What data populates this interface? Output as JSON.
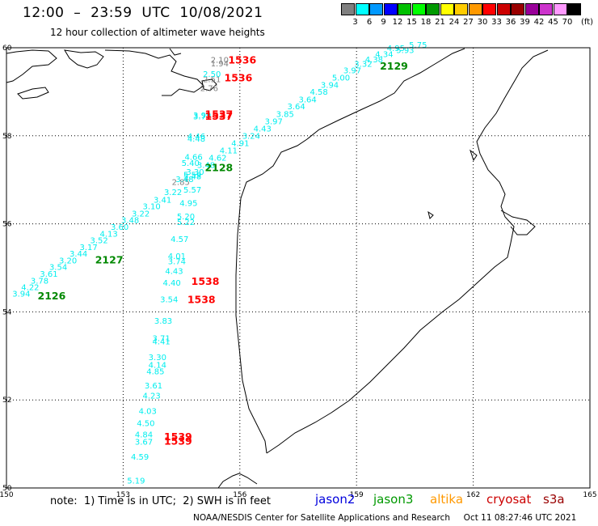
{
  "header": {
    "title": "12:00  –  23:59  UTC  10/08/2021",
    "subtitle": "12 hour collection of altimeter wave heights"
  },
  "scale": {
    "unit": "(ft)",
    "colors": [
      "#808080",
      "#00ffff",
      "#0099ff",
      "#0000ff",
      "#00c000",
      "#00ff00",
      "#009900",
      "#ffff00",
      "#ffcc00",
      "#ff9900",
      "#ff0000",
      "#cc0000",
      "#990000",
      "#990099",
      "#cc33cc",
      "#ff99ff",
      "#000000"
    ],
    "labels": [
      "3",
      "6",
      "9",
      "12",
      "15",
      "18",
      "21",
      "24",
      "27",
      "30",
      "33",
      "36",
      "39",
      "42",
      "45",
      "70"
    ]
  },
  "map": {
    "lon_min": 150,
    "lon_max": 165,
    "lat_min": 50,
    "lat_max": 60,
    "lon_ticks": [
      "150",
      "153",
      "156",
      "159",
      "162",
      "165"
    ],
    "lat_ticks": [
      "50",
      "52",
      "54",
      "56",
      "58",
      "60"
    ]
  },
  "labels": [
    {
      "t": "2.10",
      "c": "#808080",
      "lon": 155.25,
      "lat": 59.66
    },
    {
      "t": "1.94",
      "c": "#808080",
      "lon": 155.25,
      "lat": 59.58
    },
    {
      "t": "2.51",
      "c": "#808080",
      "lon": 155.05,
      "lat": 59.22
    },
    {
      "t": "2.76",
      "c": "#808080",
      "lon": 154.98,
      "lat": 59.02
    },
    {
      "t": "2.85",
      "c": "#808080",
      "lon": 154.25,
      "lat": 56.88
    },
    {
      "t": "2.50",
      "c": "#00eeee",
      "lon": 155.05,
      "lat": 59.34
    },
    {
      "t": "3.99",
      "c": "#00eeee",
      "lon": 154.8,
      "lat": 58.4
    },
    {
      "t": "3.77",
      "c": "#00eeee",
      "lon": 154.8,
      "lat": 58.37
    },
    {
      "t": "4.46",
      "c": "#00eeee",
      "lon": 154.65,
      "lat": 57.92
    },
    {
      "t": "4.48",
      "c": "#00eeee",
      "lon": 154.65,
      "lat": 57.87
    },
    {
      "t": "4.66",
      "c": "#00eeee",
      "lon": 154.58,
      "lat": 57.45
    },
    {
      "t": "5.40",
      "c": "#00eeee",
      "lon": 154.5,
      "lat": 57.32
    },
    {
      "t": "5.59",
      "c": "#00eeee",
      "lon": 154.55,
      "lat": 57.05
    },
    {
      "t": "5.48",
      "c": "#00eeee",
      "lon": 154.55,
      "lat": 57.01
    },
    {
      "t": "5.57",
      "c": "#00eeee",
      "lon": 154.55,
      "lat": 56.71
    },
    {
      "t": "4.95",
      "c": "#00eeee",
      "lon": 154.45,
      "lat": 56.41
    },
    {
      "t": "5.20",
      "c": "#00eeee",
      "lon": 154.38,
      "lat": 56.1
    },
    {
      "t": "5.22",
      "c": "#00eeee",
      "lon": 154.38,
      "lat": 55.97
    },
    {
      "t": "4.57",
      "c": "#00eeee",
      "lon": 154.22,
      "lat": 55.59
    },
    {
      "t": "4.01",
      "c": "#00eeee",
      "lon": 154.15,
      "lat": 55.2
    },
    {
      "t": "3.74",
      "c": "#00eeee",
      "lon": 154.15,
      "lat": 55.08
    },
    {
      "t": "4.43",
      "c": "#00eeee",
      "lon": 154.08,
      "lat": 54.86
    },
    {
      "t": "4.40",
      "c": "#00eeee",
      "lon": 154.02,
      "lat": 54.6
    },
    {
      "t": "3.54",
      "c": "#00eeee",
      "lon": 153.95,
      "lat": 54.22
    },
    {
      "t": "3.83",
      "c": "#00eeee",
      "lon": 153.8,
      "lat": 53.73
    },
    {
      "t": "3.71",
      "c": "#00eeee",
      "lon": 153.75,
      "lat": 53.34
    },
    {
      "t": "4.41",
      "c": "#00eeee",
      "lon": 153.75,
      "lat": 53.26
    },
    {
      "t": "3.30",
      "c": "#00eeee",
      "lon": 153.65,
      "lat": 52.9
    },
    {
      "t": "4.14",
      "c": "#00eeee",
      "lon": 153.65,
      "lat": 52.73
    },
    {
      "t": "4.85",
      "c": "#00eeee",
      "lon": 153.6,
      "lat": 52.58
    },
    {
      "t": "3.61",
      "c": "#00eeee",
      "lon": 153.55,
      "lat": 52.26
    },
    {
      "t": "4.23",
      "c": "#00eeee",
      "lon": 153.5,
      "lat": 52.03
    },
    {
      "t": "4.03",
      "c": "#00eeee",
      "lon": 153.4,
      "lat": 51.68
    },
    {
      "t": "4.50",
      "c": "#00eeee",
      "lon": 153.35,
      "lat": 51.41
    },
    {
      "t": "4.84",
      "c": "#00eeee",
      "lon": 153.3,
      "lat": 51.15
    },
    {
      "t": "3.67",
      "c": "#00eeee",
      "lon": 153.3,
      "lat": 50.98
    },
    {
      "t": "4.59",
      "c": "#00eeee",
      "lon": 153.2,
      "lat": 50.64
    },
    {
      "t": "5.19",
      "c": "#00eeee",
      "lon": 153.1,
      "lat": 50.1
    },
    {
      "t": "3.94",
      "c": "#00eeee",
      "lon": 150.15,
      "lat": 54.35
    },
    {
      "t": "4.22",
      "c": "#00eeee",
      "lon": 150.38,
      "lat": 54.49
    },
    {
      "t": "3.78",
      "c": "#00eeee",
      "lon": 150.62,
      "lat": 54.64
    },
    {
      "t": "3.61",
      "c": "#00eeee",
      "lon": 150.86,
      "lat": 54.8
    },
    {
      "t": "3.54",
      "c": "#00eeee",
      "lon": 151.1,
      "lat": 54.95
    },
    {
      "t": "3.20",
      "c": "#00eeee",
      "lon": 151.35,
      "lat": 55.1
    },
    {
      "t": "3.44",
      "c": "#00eeee",
      "lon": 151.62,
      "lat": 55.26
    },
    {
      "t": "3.17",
      "c": "#00eeee",
      "lon": 151.88,
      "lat": 55.4
    },
    {
      "t": "3.52",
      "c": "#00eeee",
      "lon": 152.15,
      "lat": 55.56
    },
    {
      "t": "4.13",
      "c": "#00eeee",
      "lon": 152.4,
      "lat": 55.71
    },
    {
      "t": "3.60",
      "c": "#00eeee",
      "lon": 152.68,
      "lat": 55.86
    },
    {
      "t": "3.48",
      "c": "#00eeee",
      "lon": 152.95,
      "lat": 56.02
    },
    {
      "t": "3.22",
      "c": "#00eeee",
      "lon": 153.22,
      "lat": 56.17
    },
    {
      "t": "3.10",
      "c": "#00eeee",
      "lon": 153.5,
      "lat": 56.33
    },
    {
      "t": "3.41",
      "c": "#00eeee",
      "lon": 153.78,
      "lat": 56.48
    },
    {
      "t": "3.22",
      "c": "#00eeee",
      "lon": 154.05,
      "lat": 56.65
    },
    {
      "t": "3.48",
      "c": "#00eeee",
      "lon": 154.35,
      "lat": 56.95
    },
    {
      "t": "3.30",
      "c": "#00eeee",
      "lon": 154.62,
      "lat": 57.11
    },
    {
      "t": "3.48",
      "c": "#00eeee",
      "lon": 154.9,
      "lat": 57.27
    },
    {
      "t": "4.62",
      "c": "#00eeee",
      "lon": 155.2,
      "lat": 57.44
    },
    {
      "t": "4.11",
      "c": "#00eeee",
      "lon": 155.48,
      "lat": 57.6
    },
    {
      "t": "4.91",
      "c": "#00eeee",
      "lon": 155.78,
      "lat": 57.77
    },
    {
      "t": "3.24",
      "c": "#00eeee",
      "lon": 156.06,
      "lat": 57.93
    },
    {
      "t": "4.43",
      "c": "#00eeee",
      "lon": 156.35,
      "lat": 58.1
    },
    {
      "t": "3.97",
      "c": "#00eeee",
      "lon": 156.64,
      "lat": 58.26
    },
    {
      "t": "3.85",
      "c": "#00eeee",
      "lon": 156.93,
      "lat": 58.43
    },
    {
      "t": "3.64",
      "c": "#00eeee",
      "lon": 157.22,
      "lat": 58.6
    },
    {
      "t": "3.64",
      "c": "#00eeee",
      "lon": 157.51,
      "lat": 58.76
    },
    {
      "t": "4.58",
      "c": "#00eeee",
      "lon": 157.8,
      "lat": 58.93
    },
    {
      "t": "3.94",
      "c": "#00eeee",
      "lon": 158.08,
      "lat": 59.09
    },
    {
      "t": "5.00",
      "c": "#00eeee",
      "lon": 158.37,
      "lat": 59.26
    },
    {
      "t": "3.97",
      "c": "#00eeee",
      "lon": 158.66,
      "lat": 59.42
    },
    {
      "t": "3.32",
      "c": "#00eeee",
      "lon": 158.94,
      "lat": 59.57
    },
    {
      "t": "4.38",
      "c": "#00eeee",
      "lon": 159.22,
      "lat": 59.67
    },
    {
      "t": "4.34",
      "c": "#00eeee",
      "lon": 159.48,
      "lat": 59.79
    },
    {
      "t": "4.95",
      "c": "#00eeee",
      "lon": 159.78,
      "lat": 59.93
    },
    {
      "t": "5.75",
      "c": "#00eeee",
      "lon": 160.35,
      "lat": 60.0
    },
    {
      "t": "5.93",
      "c": "#00eeee",
      "lon": 160.02,
      "lat": 59.88
    },
    {
      "t": "1536",
      "c": "#ff0000",
      "lon": 155.7,
      "lat": 59.64,
      "b": true
    },
    {
      "t": "1536",
      "c": "#ff0000",
      "lon": 155.6,
      "lat": 59.24,
      "b": true
    },
    {
      "t": "1537",
      "c": "#ff0000",
      "lon": 155.1,
      "lat": 58.41,
      "b": true
    },
    {
      "t": "1537",
      "c": "#ff0000",
      "lon": 155.1,
      "lat": 58.36,
      "b": true
    },
    {
      "t": "1538",
      "c": "#ff0000",
      "lon": 154.75,
      "lat": 54.61,
      "b": true
    },
    {
      "t": "1538",
      "c": "#ff0000",
      "lon": 154.65,
      "lat": 54.2,
      "b": true
    },
    {
      "t": "1539",
      "c": "#ff0000",
      "lon": 154.05,
      "lat": 51.08,
      "b": true
    },
    {
      "t": "1539",
      "c": "#ff0000",
      "lon": 154.05,
      "lat": 50.98,
      "b": true
    },
    {
      "t": "2129",
      "c": "#008800",
      "lon": 159.6,
      "lat": 59.5,
      "b": true
    },
    {
      "t": "2128",
      "c": "#008800",
      "lon": 155.1,
      "lat": 57.2,
      "b": true
    },
    {
      "t": "2127",
      "c": "#008800",
      "lon": 152.28,
      "lat": 55.1,
      "b": true
    },
    {
      "t": "2126",
      "c": "#008800",
      "lon": 150.8,
      "lat": 54.28,
      "b": true
    }
  ],
  "footer": {
    "note": "note:  1) Time is in UTC;  2) SWH is in feet",
    "credit": "NOAA/NESDIS Center for Satellite Applications and Research     Oct 11 08:27:46 UTC 2021"
  },
  "satellites": [
    {
      "name": "jason2",
      "color": "#0000dd"
    },
    {
      "name": "jason3",
      "color": "#009900"
    },
    {
      "name": "altika",
      "color": "#ff9900"
    },
    {
      "name": "cryosat",
      "color": "#cc0000"
    },
    {
      "name": "s3a",
      "color": "#990000"
    }
  ]
}
